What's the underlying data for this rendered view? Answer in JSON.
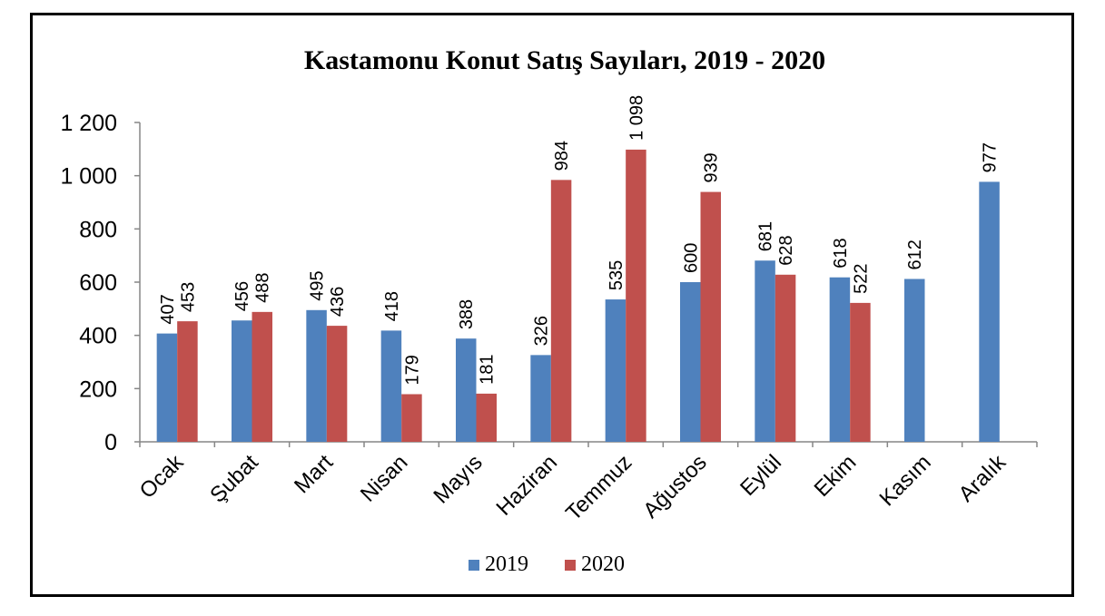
{
  "chart_data": {
    "type": "bar",
    "title": "Kastamonu Konut Satış Sayıları, 2019 - 2020",
    "xlabel": "",
    "ylabel": "",
    "categories": [
      "Ocak",
      "Şubat",
      "Mart",
      "Nisan",
      "Mayıs",
      "Haziran",
      "Temmuz",
      "Ağustos",
      "Eylül",
      "Ekim",
      "Kasım",
      "Aralık"
    ],
    "series": [
      {
        "name": "2019",
        "color": "#4f81bd",
        "values": [
          407,
          456,
          495,
          418,
          388,
          326,
          535,
          600,
          681,
          618,
          612,
          977
        ],
        "labels": [
          "407",
          "456",
          "495",
          "418",
          "388",
          "326",
          "535",
          "600",
          "681",
          "618",
          "612",
          "977"
        ]
      },
      {
        "name": "2020",
        "color": "#c0504d",
        "values": [
          453,
          488,
          436,
          179,
          181,
          984,
          1098,
          939,
          628,
          522,
          null,
          null
        ],
        "labels": [
          "453",
          "488",
          "436",
          "179",
          "181",
          "984",
          "1 098",
          "939",
          "628",
          "522",
          null,
          null
        ]
      }
    ],
    "ylim": [
      0,
      1200
    ],
    "yticks": [
      0,
      200,
      400,
      600,
      800,
      1000,
      1200
    ],
    "ytick_labels": [
      "0",
      "200",
      "400",
      "600",
      "800",
      "1 000",
      "1 200"
    ],
    "grid": false,
    "legend_position": "bottom"
  }
}
